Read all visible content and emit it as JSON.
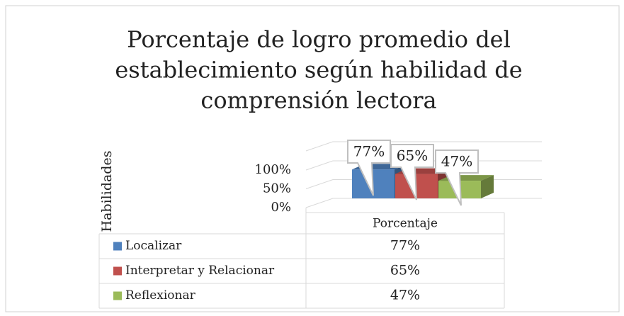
{
  "chart_data": {
    "type": "bar3d",
    "title": [
      "Porcentaje de logro promedio del",
      "establecimiento según habilidad de",
      "comprensión lectora"
    ],
    "y_label": "Habilidades",
    "categories": [
      "Porcentaje"
    ],
    "series": [
      {
        "name": "Localizar",
        "color": "#4f81bd",
        "values": [
          77
        ],
        "value_labels": [
          "77%"
        ]
      },
      {
        "name": "Interpretar y Relacionar",
        "color": "#c0504d",
        "values": [
          65
        ],
        "value_labels": [
          "65%"
        ]
      },
      {
        "name": "Reflexionar",
        "color": "#9bbb59",
        "values": [
          47
        ],
        "value_labels": [
          "47%"
        ]
      }
    ],
    "ylim": [
      0,
      100
    ],
    "yticks": [
      {
        "value": 0,
        "label": "0%"
      },
      {
        "value": 50,
        "label": "50%"
      },
      {
        "value": 100,
        "label": "100%"
      }
    ],
    "grid": true
  }
}
